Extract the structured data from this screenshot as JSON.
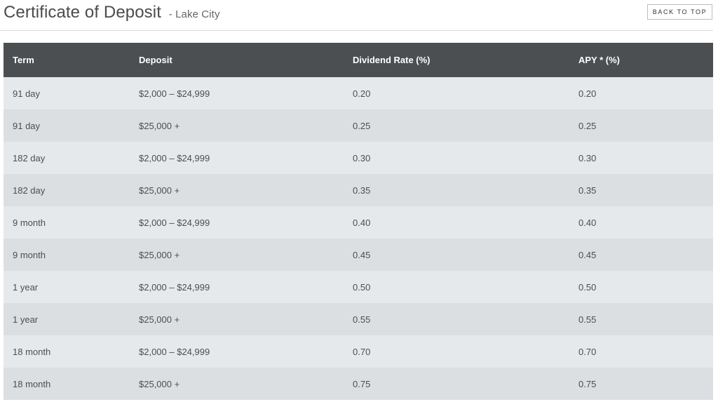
{
  "header": {
    "title": "Certificate of Deposit",
    "subtitle": "- Lake City",
    "back_to_top_label": "BACK TO TOP"
  },
  "table": {
    "columns": [
      "Term",
      "Deposit",
      "Dividend Rate (%)",
      "APY * (%)"
    ],
    "rows": [
      [
        "91 day",
        "$2,000 – $24,999",
        "0.20",
        "0.20"
      ],
      [
        "91 day",
        "$25,000 +",
        "0.25",
        "0.25"
      ],
      [
        "182 day",
        "$2,000 – $24,999",
        "0.30",
        "0.30"
      ],
      [
        "182 day",
        "$25,000 +",
        "0.35",
        "0.35"
      ],
      [
        "9 month",
        "$2,000 – $24,999",
        "0.40",
        "0.40"
      ],
      [
        "9 month",
        "$25,000 +",
        "0.45",
        "0.45"
      ],
      [
        "1 year",
        "$2,000 – $24,999",
        "0.50",
        "0.50"
      ],
      [
        "1 year",
        "$25,000 +",
        "0.55",
        "0.55"
      ],
      [
        "18 month",
        "$2,000 – $24,999",
        "0.70",
        "0.70"
      ],
      [
        "18 month",
        "$25,000 +",
        "0.75",
        "0.75"
      ]
    ]
  },
  "colors": {
    "header_bg": "#4b4f52",
    "row_light": "#e6e9ec",
    "row_dark": "#dcdfe2"
  }
}
